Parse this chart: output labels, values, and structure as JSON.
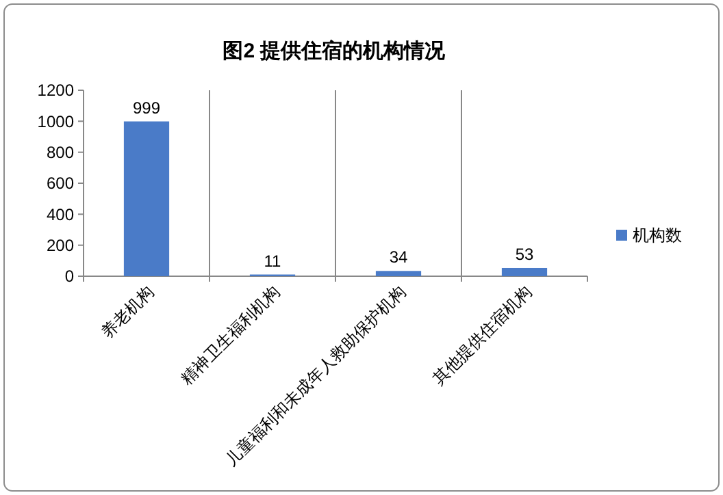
{
  "chart_data": {
    "type": "bar",
    "title": "图2 提供住宿的机构情况",
    "categories": [
      "养老机构",
      "精神卫生福利机构",
      "儿童福利和未成年人救助保护机构",
      "其他提供住宿机构"
    ],
    "series": [
      {
        "name": "机构数",
        "color": "#4a7bc8",
        "values": [
          999,
          11,
          34,
          53
        ]
      }
    ],
    "ylim": [
      0,
      1200
    ],
    "yticks": [
      0,
      200,
      400,
      600,
      800,
      1000,
      1200
    ],
    "grid": "x",
    "legend": "right",
    "data_labels": true
  }
}
